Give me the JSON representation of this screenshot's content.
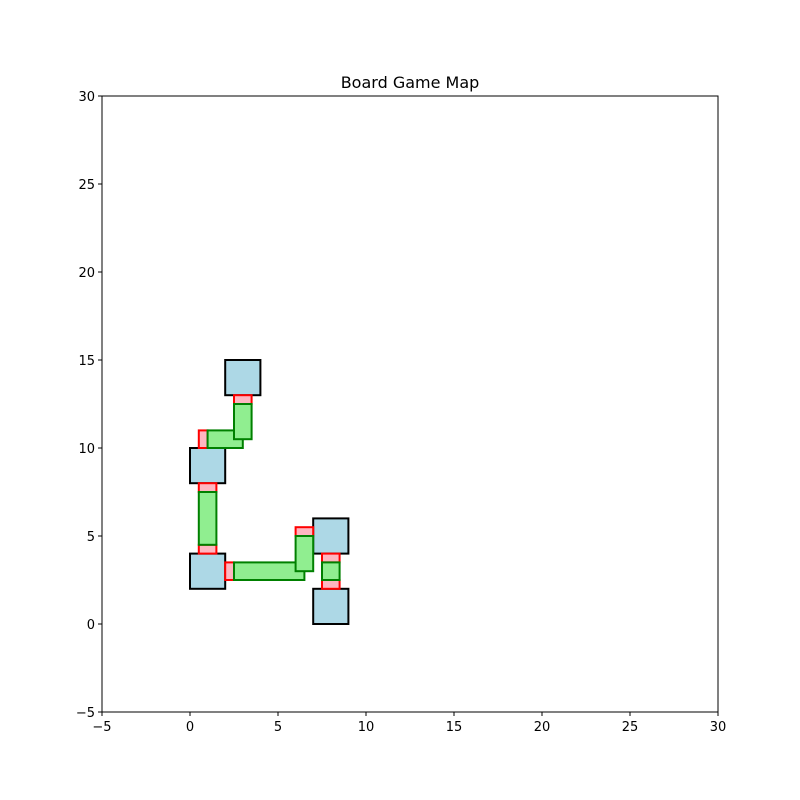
{
  "chart_data": {
    "type": "rect-map",
    "title": "Board Game Map",
    "xlabel": "",
    "ylabel": "",
    "xlim": [
      -5,
      30
    ],
    "ylim": [
      -5,
      30
    ],
    "xticks": [
      -5,
      0,
      5,
      10,
      15,
      20,
      25,
      30
    ],
    "yticks": [
      -5,
      0,
      5,
      10,
      15,
      20,
      25,
      30
    ],
    "grid": false,
    "styles": {
      "space": {
        "fill": "#add8e6",
        "stroke": "#000000",
        "stroke_width": 2
      },
      "corridor": {
        "fill": "#90ee90",
        "stroke": "#008000",
        "stroke_width": 2
      },
      "connector": {
        "fill": "#ffb6c1",
        "stroke": "#ff0000",
        "stroke_width": 2
      }
    },
    "spaces": [
      {
        "id": "space-a",
        "x": 0,
        "y": 2,
        "w": 2,
        "h": 2
      },
      {
        "id": "space-b",
        "x": 0,
        "y": 8,
        "w": 2,
        "h": 2
      },
      {
        "id": "space-c",
        "x": 2,
        "y": 13,
        "w": 2,
        "h": 2
      },
      {
        "id": "space-d",
        "x": 7,
        "y": 4,
        "w": 2,
        "h": 2
      },
      {
        "id": "space-e",
        "x": 7,
        "y": 0,
        "w": 2,
        "h": 2
      }
    ],
    "connectors": [
      {
        "x": 0.5,
        "y": 4.0,
        "w": 1.0,
        "h": 0.5
      },
      {
        "x": 0.5,
        "y": 7.5,
        "w": 1.0,
        "h": 0.5
      },
      {
        "x": 0.5,
        "y": 10.0,
        "w": 0.5,
        "h": 1.0
      },
      {
        "x": 2.5,
        "y": 12.5,
        "w": 1.0,
        "h": 0.5
      },
      {
        "x": 2.0,
        "y": 2.5,
        "w": 0.5,
        "h": 1.0
      },
      {
        "x": 6.0,
        "y": 5.0,
        "w": 1.0,
        "h": 0.5
      },
      {
        "x": 7.5,
        "y": 3.5,
        "w": 1.0,
        "h": 0.5
      },
      {
        "x": 7.5,
        "y": 2.0,
        "w": 1.0,
        "h": 0.5
      }
    ],
    "corridors": [
      {
        "x": 0.5,
        "y": 4.5,
        "w": 1.0,
        "h": 3.0
      },
      {
        "x": 1.0,
        "y": 10.0,
        "w": 2.0,
        "h": 1.0
      },
      {
        "x": 2.5,
        "y": 10.5,
        "w": 1.0,
        "h": 2.0
      },
      {
        "x": 2.5,
        "y": 2.5,
        "w": 4.0,
        "h": 1.0
      },
      {
        "x": 6.0,
        "y": 3.0,
        "w": 1.0,
        "h": 2.0
      },
      {
        "x": 7.5,
        "y": 2.5,
        "w": 1.0,
        "h": 1.0
      }
    ]
  }
}
